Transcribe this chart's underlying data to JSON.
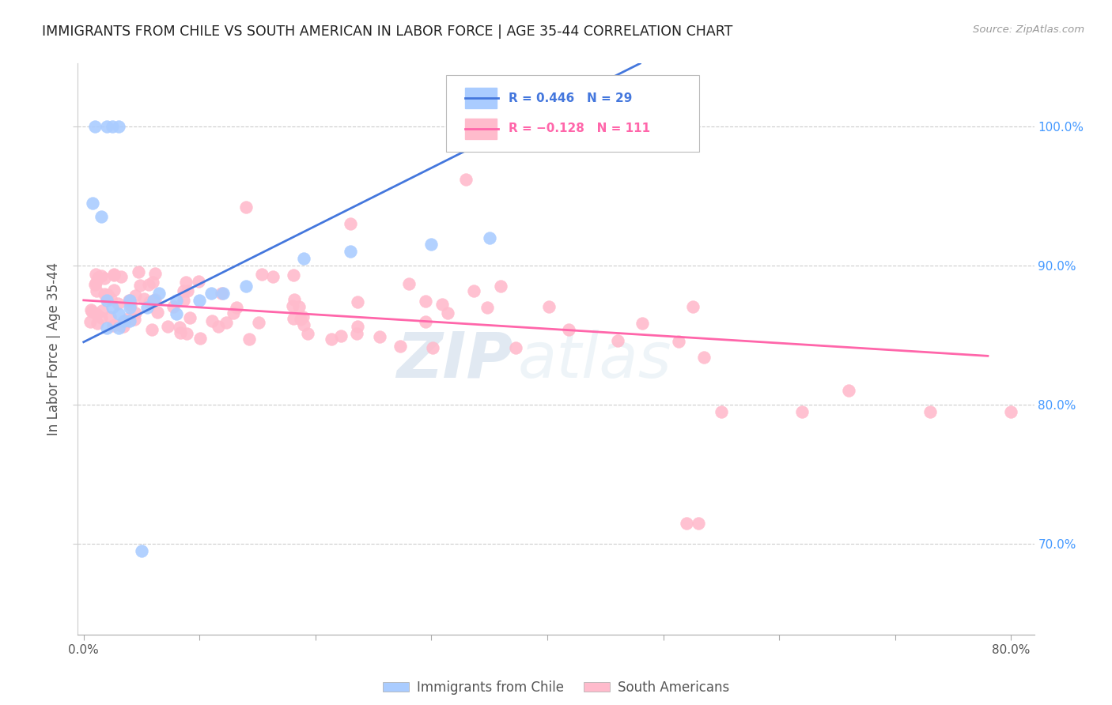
{
  "title": "IMMIGRANTS FROM CHILE VS SOUTH AMERICAN IN LABOR FORCE | AGE 35-44 CORRELATION CHART",
  "source": "Source: ZipAtlas.com",
  "ylabel": "In Labor Force | Age 35-44",
  "chile_color": "#aaccff",
  "south_color": "#ffbbcc",
  "chile_line_color": "#4477dd",
  "south_line_color": "#ff66aa",
  "watermark_zip": "ZIP",
  "watermark_atlas": "atlas",
  "xlim": [
    -0.005,
    0.82
  ],
  "ylim": [
    0.635,
    1.045
  ],
  "chile_line_x0": 0.0,
  "chile_line_y0": 0.845,
  "chile_line_x1": 0.48,
  "chile_line_y1": 1.045,
  "south_line_x0": 0.0,
  "south_line_y0": 0.875,
  "south_line_x1": 0.78,
  "south_line_y1": 0.835,
  "yticks": [
    0.7,
    0.8,
    0.9,
    1.0
  ],
  "ytick_labels": [
    "70.0%",
    "80.0%",
    "90.0%",
    "100.0%"
  ],
  "xtick_positions": [
    0.0,
    0.1,
    0.2,
    0.3,
    0.4,
    0.5,
    0.6,
    0.7,
    0.8
  ],
  "xtick_labels_show": [
    "0.0%",
    "",
    "",
    "",
    "",
    "",
    "",
    "",
    "80.0%"
  ],
  "corr_box_r1": "R = 0.446",
  "corr_box_n1": "N = 29",
  "corr_box_r2": "R = −0.128",
  "corr_box_n2": "N = 111"
}
